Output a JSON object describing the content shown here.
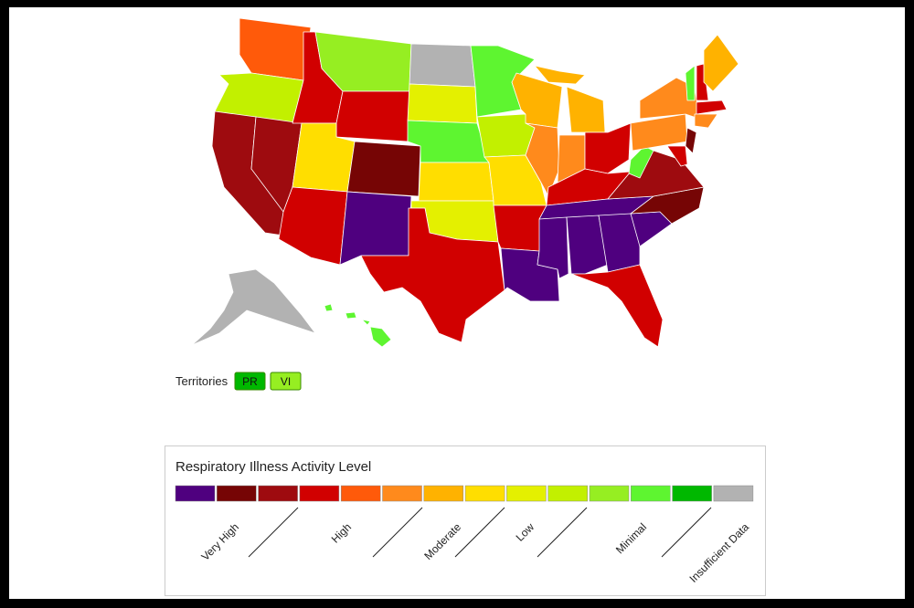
{
  "territories": {
    "label": "Territories",
    "items": [
      {
        "name": "PR",
        "color": "#00b800"
      },
      {
        "name": "VI",
        "color": "#96ee22"
      }
    ]
  },
  "legend": {
    "title": "Respiratory Illness Activity Level",
    "colors": [
      "#4f007f",
      "#760505",
      "#9e0b0f",
      "#d10000",
      "#ff5a0a",
      "#ff8a1c",
      "#ffb200",
      "#ffde00",
      "#e4f000",
      "#c2f000",
      "#96ee22",
      "#5ef530",
      "#00b800",
      "#b2b2b2"
    ],
    "labels": [
      "Very High",
      "High",
      "Moderate",
      "Low",
      "Minimal",
      "Insufficient Data"
    ]
  }
}
